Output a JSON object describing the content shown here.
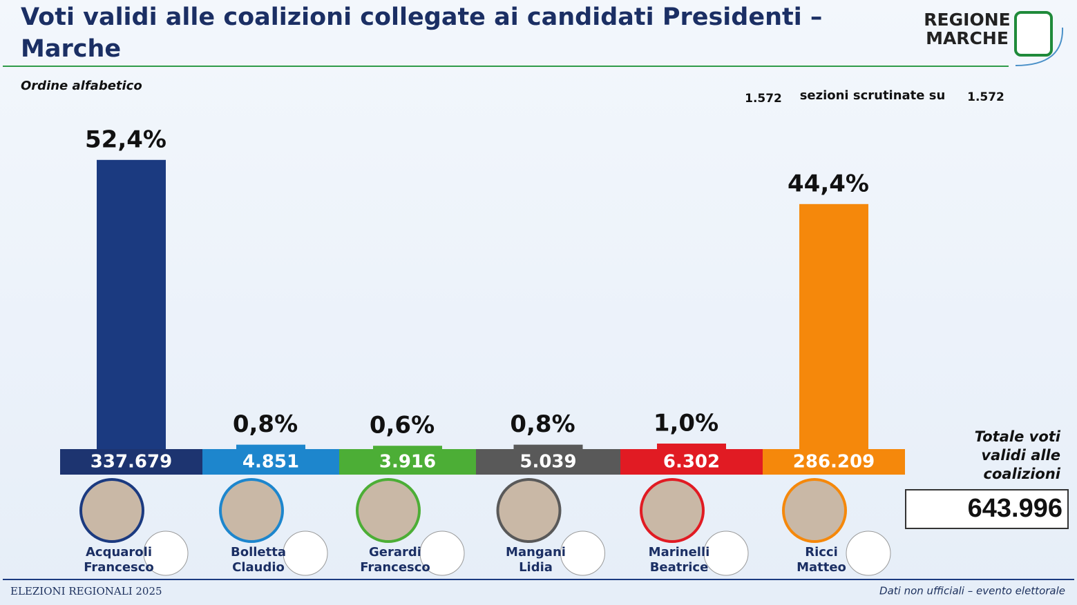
{
  "header": {
    "title": "Voti validi alle coalizioni collegate ai candidati Presidenti – Marche",
    "logo": [
      "REGIONE",
      "MARCHE"
    ]
  },
  "chart_data": {
    "type": "bar",
    "subtitle": "Ordine alfabetico",
    "categories": [
      "Acquaroli\nFrancesco",
      "Bolletta\nClaudio",
      "Gerardi\nFrancesco",
      "Mangani\nLidia",
      "Marinelli\nBeatrice",
      "Ricci\nMatteo"
    ],
    "values": [
      52.4,
      0.8,
      0.6,
      0.8,
      1.0,
      44.4
    ],
    "value_labels": [
      "52,4%",
      "0,8%",
      "0,6%",
      "0,8%",
      "1,0%",
      "44,4%"
    ],
    "votes": [
      "337.679",
      "4.851",
      "3.916",
      "5.039",
      "6.302",
      "286.209"
    ],
    "colors": [
      "#1b3a80",
      "#1d86cd",
      "#4cae36",
      "#595959",
      "#e11b23",
      "#f5880b"
    ]
  },
  "sections": {
    "counted": "1.572",
    "text": "sezioni scrutinate su",
    "total": "1.572"
  },
  "total": {
    "label": "Totale voti validi alle coalizioni",
    "value": "643.996"
  },
  "footer": {
    "left": "ELEZIONI REGIONALI 2025",
    "right": "Dati non ufficiali – evento elettorale"
  }
}
